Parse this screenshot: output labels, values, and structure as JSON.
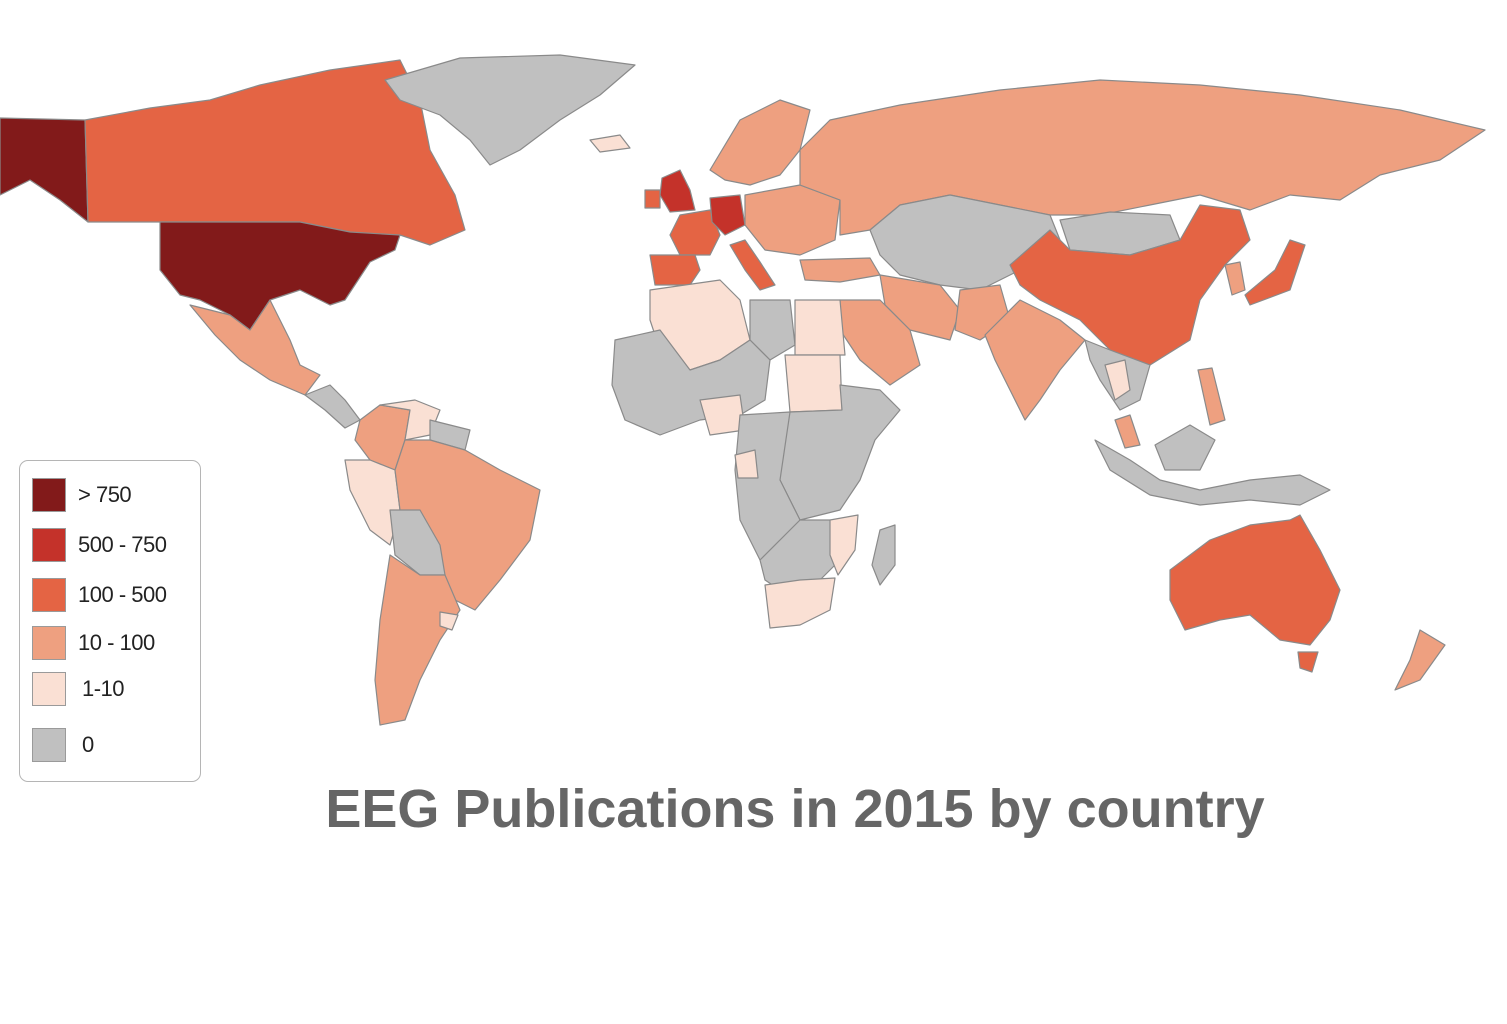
{
  "title": "EEG Publications in 2015 by country",
  "legend": {
    "items": [
      {
        "label": "> 750",
        "color": "#821a1a"
      },
      {
        "label": "500 - 750",
        "color": "#c4322a"
      },
      {
        "label": "100 - 500",
        "color": "#e46444"
      },
      {
        "label": "10 - 100",
        "color": "#eea080"
      },
      {
        "label": "1-10",
        "color": "#fae0d4"
      },
      {
        "label": "0",
        "color": "#c0c0c0"
      }
    ]
  },
  "colors": {
    "gt750": "#821a1a",
    "c500_750": "#c4322a",
    "c100_500": "#e46444",
    "c10_100": "#eea080",
    "c1_10": "#fae0d4",
    "zero": "#c0c0c0"
  }
}
